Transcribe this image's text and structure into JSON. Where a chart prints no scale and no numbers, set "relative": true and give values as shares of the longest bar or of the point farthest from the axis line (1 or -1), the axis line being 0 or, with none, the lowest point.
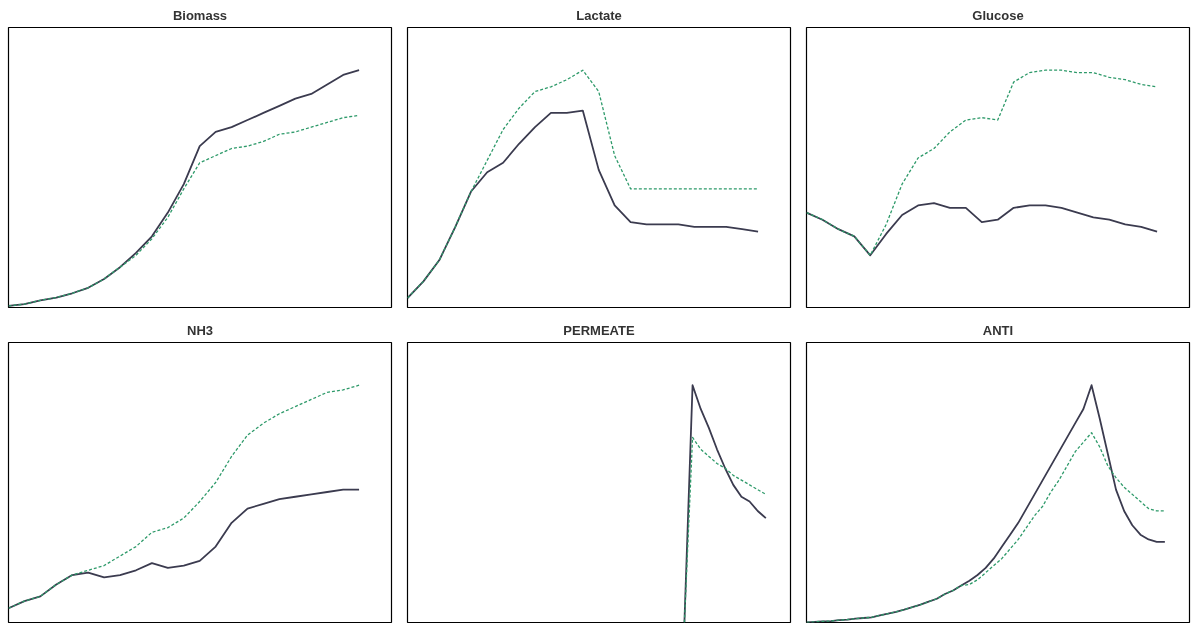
{
  "chart_data": [
    {
      "type": "line",
      "title": "Biomass",
      "relative": true,
      "grid": false,
      "categories": [
        null,
        null,
        null,
        null,
        null,
        null,
        null,
        null,
        null,
        null,
        null,
        null,
        null,
        null,
        null,
        null,
        null,
        null,
        null,
        null,
        null,
        null,
        null
      ],
      "series": [
        {
          "color": "#3b3b4f",
          "line_style": "solid",
          "values": [
            0.007,
            0.014,
            0.03,
            0.042,
            0.06,
            0.083,
            0.12,
            0.17,
            0.23,
            0.3,
            0.4,
            0.52,
            0.68,
            0.74,
            0.76,
            0.79,
            0.82,
            0.85,
            0.88,
            0.9,
            0.94,
            0.98,
            1
          ]
        },
        {
          "color": "#2e9a6a",
          "line_style": "dashed",
          "values": [
            0.007,
            0.014,
            0.03,
            0.042,
            0.06,
            0.083,
            0.12,
            0.17,
            0.22,
            0.29,
            0.38,
            0.5,
            0.61,
            0.64,
            0.67,
            0.68,
            0.7,
            0.73,
            0.74,
            0.76,
            0.78,
            0.8,
            0.81
          ]
        }
      ]
    },
    {
      "type": "line",
      "title": "Lactate",
      "relative": true,
      "grid": false,
      "categories": [
        null,
        null,
        null,
        null,
        null,
        null,
        null,
        null,
        null,
        null,
        null,
        null,
        null,
        null,
        null,
        null,
        null,
        null,
        null,
        null,
        null,
        null,
        null
      ],
      "series": [
        {
          "color": "#3b3b4f",
          "line_style": "solid",
          "values": [
            0.04,
            0.11,
            0.2,
            0.34,
            0.49,
            0.57,
            0.61,
            0.69,
            0.76,
            0.82,
            0.82,
            0.83,
            0.58,
            0.43,
            0.36,
            0.35,
            0.35,
            0.35,
            0.34,
            0.34,
            0.34,
            0.33,
            0.32
          ]
        },
        {
          "color": "#2e9a6a",
          "line_style": "dashed",
          "values": [
            0.04,
            0.11,
            0.2,
            0.34,
            0.49,
            0.62,
            0.75,
            0.84,
            0.91,
            0.93,
            0.96,
            1,
            0.91,
            0.64,
            0.5,
            0.5,
            0.5,
            0.5,
            0.5,
            0.5,
            0.5,
            0.5,
            0.5
          ]
        }
      ]
    },
    {
      "type": "line",
      "title": "Glucose",
      "relative": true,
      "grid": false,
      "categories": [
        null,
        null,
        null,
        null,
        null,
        null,
        null,
        null,
        null,
        null,
        null,
        null,
        null,
        null,
        null,
        null,
        null,
        null,
        null,
        null,
        null,
        null,
        null
      ],
      "series": [
        {
          "color": "#3b3b4f",
          "line_style": "solid",
          "values": [
            0.4,
            0.37,
            0.33,
            0.3,
            0.22,
            0.31,
            0.39,
            0.43,
            0.44,
            0.42,
            0.42,
            0.36,
            0.37,
            0.42,
            0.43,
            0.43,
            0.42,
            0.4,
            0.38,
            0.37,
            0.35,
            0.34,
            0.32
          ]
        },
        {
          "color": "#2e9a6a",
          "line_style": "dashed",
          "values": [
            0.4,
            0.37,
            0.33,
            0.3,
            0.22,
            0.35,
            0.52,
            0.63,
            0.67,
            0.74,
            0.79,
            0.8,
            0.79,
            0.95,
            0.99,
            1,
            1,
            0.99,
            0.99,
            0.97,
            0.96,
            0.94,
            0.93
          ]
        }
      ]
    },
    {
      "type": "line",
      "title": "NH3",
      "relative": true,
      "grid": false,
      "categories": [
        null,
        null,
        null,
        null,
        null,
        null,
        null,
        null,
        null,
        null,
        null,
        null,
        null,
        null,
        null,
        null,
        null,
        null,
        null,
        null,
        null,
        null,
        null
      ],
      "series": [
        {
          "color": "#3b3b4f",
          "line_style": "solid",
          "values": [
            0.06,
            0.09,
            0.11,
            0.16,
            0.2,
            0.21,
            0.19,
            0.2,
            0.22,
            0.25,
            0.23,
            0.24,
            0.26,
            0.32,
            0.42,
            0.48,
            0.5,
            0.52,
            0.53,
            0.54,
            0.55,
            0.56,
            0.56
          ]
        },
        {
          "color": "#2e9a6a",
          "line_style": "dashed",
          "values": [
            0.06,
            0.09,
            0.11,
            0.16,
            0.2,
            0.22,
            0.24,
            0.28,
            0.32,
            0.38,
            0.4,
            0.44,
            0.51,
            0.59,
            0.7,
            0.79,
            0.84,
            0.88,
            0.91,
            0.94,
            0.97,
            0.98,
            1
          ]
        }
      ]
    },
    {
      "type": "line",
      "title": "PERMEATE",
      "relative": true,
      "grid": false,
      "categories": [
        null,
        null,
        null,
        null,
        null,
        null,
        null,
        null,
        null,
        null,
        null,
        null,
        null,
        null,
        null,
        null,
        null,
        null,
        null,
        null,
        null,
        null,
        null,
        null,
        null,
        null,
        null,
        null,
        null,
        null,
        null,
        null,
        null,
        null,
        null,
        null,
        null,
        null,
        null,
        null,
        null,
        null,
        null,
        null,
        null
      ],
      "series": [
        {
          "color": "#3b3b4f",
          "line_style": "solid",
          "values": [
            null,
            null,
            null,
            null,
            null,
            null,
            null,
            null,
            null,
            null,
            null,
            null,
            null,
            null,
            null,
            null,
            null,
            null,
            null,
            null,
            null,
            null,
            null,
            null,
            null,
            null,
            null,
            null,
            null,
            null,
            null,
            null,
            null,
            null,
            0,
            1,
            0.9,
            0.82,
            0.73,
            0.65,
            0.58,
            0.53,
            0.51,
            0.47,
            0.44
          ]
        },
        {
          "color": "#2e9a6a",
          "line_style": "dashed",
          "values": [
            null,
            null,
            null,
            null,
            null,
            null,
            null,
            null,
            null,
            null,
            null,
            null,
            null,
            null,
            null,
            null,
            null,
            null,
            null,
            null,
            null,
            null,
            null,
            null,
            null,
            null,
            null,
            null,
            null,
            null,
            null,
            null,
            null,
            null,
            0,
            0.78,
            0.73,
            0.7,
            0.67,
            0.65,
            0.62,
            0.6,
            0.58,
            0.56,
            0.54
          ]
        }
      ]
    },
    {
      "type": "line",
      "title": "ANTI",
      "relative": true,
      "grid": false,
      "categories": [
        null,
        null,
        null,
        null,
        null,
        null,
        null,
        null,
        null,
        null,
        null,
        null,
        null,
        null,
        null,
        null,
        null,
        null,
        null,
        null,
        null,
        null,
        null,
        null,
        null,
        null,
        null,
        null,
        null,
        null,
        null,
        null,
        null,
        null,
        null,
        null,
        null,
        null,
        null,
        null,
        null,
        null,
        null,
        null,
        null
      ],
      "series": [
        {
          "color": "#3b3b4f",
          "line_style": "solid",
          "values": [
            0,
            0.003,
            0.005,
            0.006,
            0.01,
            0.012,
            0.016,
            0.019,
            0.022,
            0.03,
            0.037,
            0.045,
            0.054,
            0.065,
            0.075,
            0.088,
            0.1,
            0.12,
            0.135,
            0.156,
            0.176,
            0.2,
            0.23,
            0.27,
            0.32,
            0.37,
            0.42,
            0.48,
            0.54,
            0.6,
            0.66,
            0.72,
            0.78,
            0.84,
            0.9,
            1,
            0.86,
            0.71,
            0.56,
            0.47,
            0.41,
            0.37,
            0.35,
            0.34,
            0.34
          ]
        },
        {
          "color": "#2e9a6a",
          "line_style": "dashed",
          "values": [
            0,
            0.003,
            0.005,
            0.006,
            0.01,
            0.012,
            0.016,
            0.019,
            0.022,
            0.03,
            0.037,
            0.045,
            0.054,
            0.065,
            0.075,
            0.088,
            0.1,
            0.12,
            0.135,
            0.156,
            0.16,
            0.18,
            0.21,
            0.24,
            0.27,
            0.31,
            0.35,
            0.4,
            0.45,
            0.49,
            0.55,
            0.6,
            0.66,
            0.72,
            0.76,
            0.8,
            0.74,
            0.66,
            0.61,
            0.57,
            0.54,
            0.51,
            0.48,
            0.47,
            0.47
          ]
        }
      ]
    }
  ]
}
